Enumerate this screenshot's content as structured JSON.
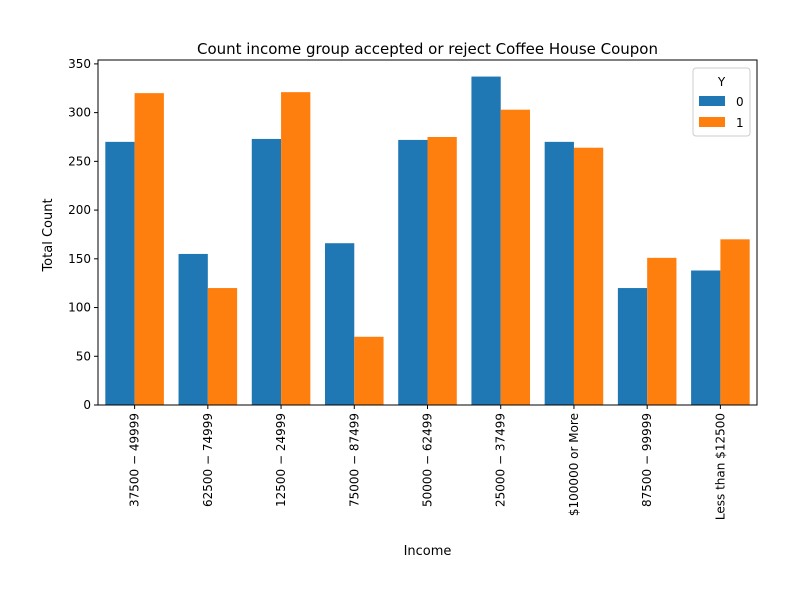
{
  "chart_data": {
    "type": "bar",
    "title": "Count income group accepted or reject Coffee House Coupon",
    "xlabel": "Income",
    "ylabel": "Total Count",
    "categories": [
      "$37500 - $49999",
      "$62500 - $74999",
      "$12500 - $24999",
      "$75000 - $87499",
      "$50000 - $62499",
      "$25000 - $37499",
      "$100000 or More",
      "$87500 - $99999",
      "Less than $12500"
    ],
    "category_labels": [
      "37500 − 49999",
      "62500 − 74999",
      "12500 − 24999",
      "75000 − 87499",
      "50000 − 62499",
      "25000 − 37499",
      "$100000 or More",
      "87500 − 99999",
      "Less than $12500"
    ],
    "series": [
      {
        "name": "0",
        "color": "#1f77b4",
        "values": [
          270,
          155,
          273,
          166,
          272,
          337,
          270,
          120,
          138
        ]
      },
      {
        "name": "1",
        "color": "#ff7f0e",
        "values": [
          320,
          120,
          321,
          70,
          275,
          303,
          264,
          151,
          170
        ]
      }
    ],
    "yticks": [
      0,
      50,
      100,
      150,
      200,
      250,
      300,
      350
    ],
    "ylim": [
      0,
      354
    ],
    "legend": {
      "title": "Y",
      "placement": "top-right"
    },
    "grid": false
  }
}
